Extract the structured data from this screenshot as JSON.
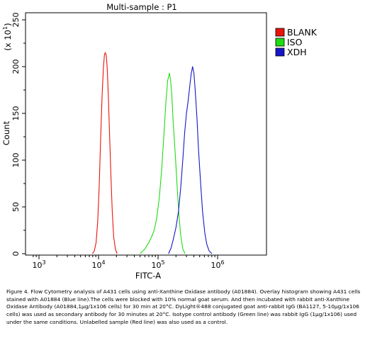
{
  "chart_data": {
    "type": "line",
    "title": "Multi-sample : P1",
    "xlabel": "FITC-A",
    "ylabel": "Count",
    "y_multiplier": "(x 10",
    "y_multiplier_exp": "1",
    "y_multiplier_close": ")",
    "x_scale": "log",
    "xlim": [
      1000,
      1000000
    ],
    "ylim": [
      0,
      250
    ],
    "x_ticks": [
      {
        "value": 1000,
        "base": "10",
        "exp": "3"
      },
      {
        "value": 10000,
        "base": "10",
        "exp": "4"
      },
      {
        "value": 100000,
        "base": "10",
        "exp": "5"
      },
      {
        "value": 1000000,
        "base": "10",
        "exp": "6"
      }
    ],
    "y_ticks": [
      {
        "value": 0,
        "label": "0"
      },
      {
        "value": 50,
        "label": "50"
      },
      {
        "value": 100,
        "label": "100"
      },
      {
        "value": 150,
        "label": "150"
      },
      {
        "value": 200,
        "label": "200"
      },
      {
        "value": 250,
        "label": "250"
      }
    ],
    "grid": false,
    "legend_position": "right",
    "series": [
      {
        "name": "BLANK",
        "color": "#e8140a",
        "points": [
          [
            7900,
            0
          ],
          [
            8500,
            3
          ],
          [
            9100,
            12
          ],
          [
            9700,
            35
          ],
          [
            10300,
            75
          ],
          [
            10900,
            125
          ],
          [
            11500,
            170
          ],
          [
            12100,
            200
          ],
          [
            12600,
            213
          ],
          [
            13000,
            215
          ],
          [
            13500,
            212
          ],
          [
            14000,
            198
          ],
          [
            14600,
            170
          ],
          [
            15300,
            130
          ],
          [
            16100,
            85
          ],
          [
            17000,
            45
          ],
          [
            18000,
            18
          ],
          [
            19200,
            5
          ],
          [
            20500,
            0
          ]
        ]
      },
      {
        "name": "ISO",
        "color": "#1edc12",
        "points": [
          [
            50000,
            0
          ],
          [
            60000,
            5
          ],
          [
            70000,
            12
          ],
          [
            78000,
            18
          ],
          [
            86000,
            25
          ],
          [
            95000,
            38
          ],
          [
            105000,
            60
          ],
          [
            115000,
            90
          ],
          [
            125000,
            125
          ],
          [
            135000,
            160
          ],
          [
            145000,
            185
          ],
          [
            155000,
            193
          ],
          [
            162000,
            186
          ],
          [
            170000,
            170
          ],
          [
            180000,
            140
          ],
          [
            195000,
            105
          ],
          [
            210000,
            70
          ],
          [
            225000,
            40
          ],
          [
            240000,
            20
          ],
          [
            260000,
            5
          ],
          [
            285000,
            0
          ]
        ]
      },
      {
        "name": "XDH",
        "color": "#1616c8",
        "points": [
          [
            150000,
            0
          ],
          [
            165000,
            6
          ],
          [
            180000,
            15
          ],
          [
            200000,
            28
          ],
          [
            220000,
            45
          ],
          [
            240000,
            70
          ],
          [
            260000,
            100
          ],
          [
            280000,
            130
          ],
          [
            300000,
            150
          ],
          [
            320000,
            163
          ],
          [
            340000,
            178
          ],
          [
            360000,
            192
          ],
          [
            380000,
            200
          ],
          [
            400000,
            193
          ],
          [
            420000,
            175
          ],
          [
            450000,
            145
          ],
          [
            480000,
            110
          ],
          [
            520000,
            75
          ],
          [
            560000,
            45
          ],
          [
            610000,
            22
          ],
          [
            660000,
            10
          ],
          [
            720000,
            3
          ],
          [
            800000,
            0
          ]
        ]
      }
    ]
  },
  "caption": "Figure 4. Flow Cytometry analysis of A431 cells using anti-Xanthine Oxidase antibody (A01884).  Overlay histogram showing A431 cells stained with A01884 (Blue line).The cells were blocked with 10% normal goat serum. And then incubated with rabbit anti-Xanthine Oxidase Antibody (A01884,1µg/1x106 cells) for 30 min at 20°C. DyLight®488 conjugated goat anti-rabbit IgG (BA1127, 5-10µg/1x106 cells) was used as secondary antibody for 30 minutes at 20°C. Isotype control antibody (Green line) was rabbit IgG (1µg/1x106) used under the same conditions. Unlabelled sample (Red line) was also used as a control."
}
